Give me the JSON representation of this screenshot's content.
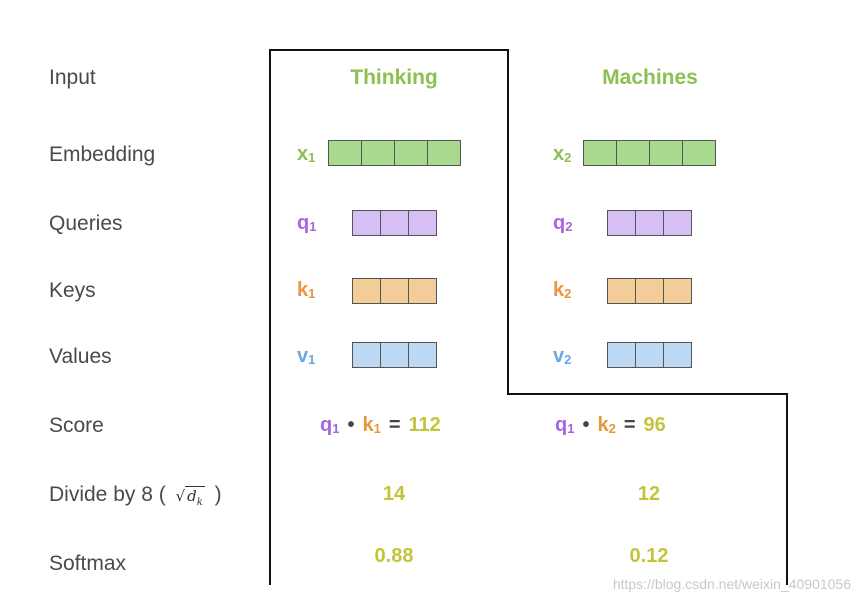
{
  "labels": {
    "input": "Input",
    "embedding": "Embedding",
    "queries": "Queries",
    "keys": "Keys",
    "values": "Values",
    "score": "Score",
    "divide_prefix": "Divide by 8 (",
    "divide_sqrt_symbol": "√",
    "divide_sqrt_arg": "d",
    "divide_sqrt_sub": "k",
    "divide_suffix": ")",
    "softmax": "Softmax"
  },
  "words": {
    "w1": "Thinking",
    "w2": "Machines"
  },
  "vectors": {
    "x1": {
      "base": "x",
      "sub": "1"
    },
    "x2": {
      "base": "x",
      "sub": "2"
    },
    "q1": {
      "base": "q",
      "sub": "1"
    },
    "q2": {
      "base": "q",
      "sub": "2"
    },
    "k1": {
      "base": "k",
      "sub": "1"
    },
    "k2": {
      "base": "k",
      "sub": "2"
    },
    "v1": {
      "base": "v",
      "sub": "1"
    },
    "v2": {
      "base": "v",
      "sub": "2"
    }
  },
  "score": {
    "s1": {
      "q": "q",
      "qs": "1",
      "dot": "•",
      "k": "k",
      "ks": "1",
      "eq": "=",
      "val": "112"
    },
    "s2": {
      "q": "q",
      "qs": "1",
      "dot": "•",
      "k": "k",
      "ks": "2",
      "eq": "=",
      "val": "96"
    }
  },
  "divide": {
    "d1": "14",
    "d2": "12"
  },
  "softmax": {
    "s1": "0.88",
    "s2": "0.12"
  },
  "watermark": "https://blog.csdn.net/weixin_40901056",
  "colors": {
    "word": "#8cc152",
    "query": "#a865e0",
    "key": "#e8963e",
    "value": "#6aa6e8",
    "result": "#c4c43a"
  }
}
